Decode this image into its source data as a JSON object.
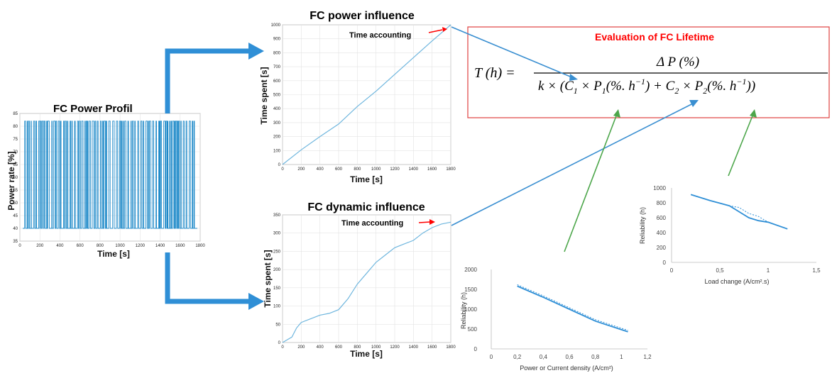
{
  "profile": {
    "title": "FC Power Profil",
    "ylabel": "Power rate [%]",
    "xlabel": "Time [s]",
    "yticks": [
      "35",
      "40",
      "45",
      "50",
      "55",
      "60",
      "65",
      "70",
      "75",
      "80",
      "85"
    ],
    "xticks": [
      "0",
      "200",
      "400",
      "600",
      "800",
      "1000",
      "1200",
      "1400",
      "1600",
      "1800"
    ],
    "color": "#1f8ac9"
  },
  "power": {
    "title": "FC power influence",
    "ylabel": "Time spent [s]",
    "xlabel": "Time [s]",
    "annotation": "Time accounting",
    "yticks": [
      "0",
      "100",
      "200",
      "300",
      "400",
      "500",
      "600",
      "700",
      "800",
      "900",
      "1000"
    ],
    "xticks": [
      "0",
      "200",
      "400",
      "600",
      "800",
      "1000",
      "1200",
      "1400",
      "1600",
      "1800"
    ]
  },
  "dynamic": {
    "title": "FC dynamic influence",
    "ylabel": "Time spent [s]",
    "xlabel": "Time [s]",
    "annotation": "Time accounting",
    "yticks": [
      "0",
      "50",
      "100",
      "150",
      "200",
      "250",
      "300",
      "350"
    ],
    "xticks": [
      "0",
      "200",
      "400",
      "600",
      "800",
      "1000",
      "1200",
      "1400",
      "1600",
      "1800"
    ]
  },
  "formula": {
    "title": "Evaluation of  FC Lifetime",
    "title_color": "#ff0000",
    "border_color": "#e0413f"
  },
  "chart_data": [
    {
      "type": "line",
      "title": "FC power influence",
      "xlabel": "Time [s]",
      "ylabel": "Time spent [s]",
      "xlim": [
        0,
        1800
      ],
      "ylim": [
        0,
        1000
      ],
      "grid": true,
      "series": [
        {
          "x": [
            0,
            200,
            400,
            600,
            800,
            1000,
            1200,
            1400,
            1600,
            1800
          ],
          "y": [
            0,
            105,
            200,
            290,
            415,
            525,
            645,
            765,
            885,
            1000
          ]
        }
      ]
    },
    {
      "type": "line",
      "title": "FC dynamic influence",
      "xlabel": "Time [s]",
      "ylabel": "Time spent [s]",
      "xlim": [
        0,
        1800
      ],
      "ylim": [
        0,
        350
      ],
      "grid": true,
      "series": [
        {
          "x": [
            0,
            100,
            150,
            200,
            300,
            400,
            500,
            600,
            700,
            800,
            900,
            1000,
            1100,
            1200,
            1300,
            1400,
            1500,
            1600,
            1700,
            1800
          ],
          "y": [
            0,
            15,
            40,
            55,
            65,
            75,
            80,
            90,
            120,
            160,
            190,
            220,
            240,
            260,
            270,
            280,
            300,
            315,
            325,
            330
          ]
        }
      ]
    },
    {
      "type": "line",
      "xlabel": "Power or Current density (A/cm²)",
      "ylabel": "Reliability (h)",
      "xlim": [
        0,
        1.2
      ],
      "ylim": [
        0,
        2000
      ],
      "grid": false,
      "series": [
        {
          "x": [
            0.2,
            0.4,
            0.6,
            0.8,
            1.05
          ],
          "y": [
            1580,
            1300,
            1000,
            700,
            430
          ]
        }
      ]
    },
    {
      "type": "line",
      "xlabel": "Load change (A/cm².s)",
      "ylabel": "Reliability (h)",
      "xlim": [
        0,
        1.5
      ],
      "ylim": [
        0,
        1000
      ],
      "grid": false,
      "series": [
        {
          "x": [
            0.2,
            0.4,
            0.6,
            0.7,
            0.8,
            0.9,
            1.0,
            1.2
          ],
          "y": [
            910,
            830,
            760,
            680,
            600,
            560,
            540,
            450
          ]
        }
      ]
    }
  ]
}
